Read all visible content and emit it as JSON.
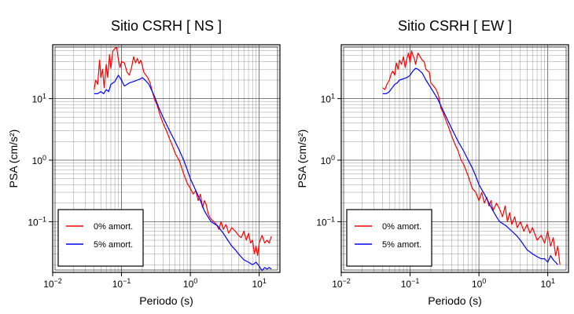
{
  "chart_data": [
    {
      "type": "line",
      "title": "Sitio CSRH [ NS ]",
      "xlabel": "Periodo (s)",
      "ylabel": "PSA (cm/s²)",
      "xscale": "log",
      "yscale": "log",
      "xlim": [
        0.01,
        20
      ],
      "ylim": [
        0.015,
        75
      ],
      "xticks": [
        0.01,
        0.1,
        1,
        10
      ],
      "yticks": [
        0.1,
        1,
        10
      ],
      "grid": true,
      "legend_position": "bottom-left",
      "series": [
        {
          "name": "0% amort.",
          "color": "#ff0000",
          "x": [
            0.04,
            0.042,
            0.045,
            0.048,
            0.05,
            0.053,
            0.056,
            0.06,
            0.063,
            0.067,
            0.07,
            0.075,
            0.08,
            0.085,
            0.09,
            0.095,
            0.1,
            0.11,
            0.12,
            0.13,
            0.14,
            0.15,
            0.16,
            0.17,
            0.18,
            0.19,
            0.2,
            0.21,
            0.22,
            0.24,
            0.26,
            0.28,
            0.3,
            0.33,
            0.36,
            0.4,
            0.45,
            0.5,
            0.55,
            0.6,
            0.7,
            0.8,
            0.9,
            1.0,
            1.1,
            1.2,
            1.3,
            1.4,
            1.5,
            1.6,
            1.7,
            1.8,
            1.9,
            2.0,
            2.2,
            2.4,
            2.6,
            2.8,
            3.0,
            3.3,
            3.6,
            4.0,
            4.5,
            5.0,
            5.5,
            6.0,
            6.5,
            7.0,
            7.5,
            8.0,
            8.5,
            9.0,
            9.5,
            10.0,
            11.0,
            12.0,
            13.0,
            14.0,
            15.0
          ],
          "values": [
            14,
            20,
            17,
            42,
            22,
            30,
            15,
            36,
            22,
            52,
            31,
            60,
            65,
            68,
            44,
            32,
            40,
            38,
            27,
            24,
            32,
            48,
            38,
            45,
            37,
            42,
            35,
            27,
            25,
            22,
            18,
            13,
            10,
            7.8,
            5.5,
            4.0,
            3.0,
            2.2,
            1.7,
            1.3,
            0.95,
            0.6,
            0.42,
            0.35,
            0.28,
            0.32,
            0.22,
            0.28,
            0.17,
            0.22,
            0.19,
            0.14,
            0.12,
            0.11,
            0.1,
            0.09,
            0.075,
            0.1,
            0.075,
            0.09,
            0.065,
            0.08,
            0.07,
            0.06,
            0.055,
            0.07,
            0.05,
            0.065,
            0.045,
            0.05,
            0.03,
            0.04,
            0.028,
            0.045,
            0.06,
            0.045,
            0.05,
            0.045,
            0.058
          ]
        },
        {
          "name": "5% amort.",
          "color": "#0000ff",
          "x": [
            0.04,
            0.045,
            0.05,
            0.055,
            0.06,
            0.065,
            0.07,
            0.075,
            0.08,
            0.09,
            0.1,
            0.11,
            0.12,
            0.13,
            0.15,
            0.17,
            0.19,
            0.2,
            0.22,
            0.25,
            0.3,
            0.35,
            0.4,
            0.5,
            0.6,
            0.7,
            0.8,
            0.9,
            1.0,
            1.2,
            1.4,
            1.6,
            1.8,
            2.0,
            2.5,
            3.0,
            3.5,
            4.0,
            4.5,
            5.0,
            6.0,
            7.0,
            8.0,
            9.0,
            10.0,
            11.0,
            12.0,
            13.0,
            14.0,
            15.0
          ],
          "values": [
            12,
            12,
            13,
            12,
            14,
            13,
            17,
            18,
            19,
            24,
            20,
            16,
            17,
            18,
            19,
            20,
            21,
            22,
            20,
            17,
            11,
            7,
            5,
            3,
            2,
            1.4,
            1.0,
            0.7,
            0.5,
            0.32,
            0.22,
            0.15,
            0.12,
            0.1,
            0.085,
            0.065,
            0.05,
            0.04,
            0.035,
            0.03,
            0.024,
            0.022,
            0.02,
            0.022,
            0.019,
            0.016,
            0.018,
            0.017,
            0.018,
            0.017
          ]
        }
      ]
    },
    {
      "type": "line",
      "title": "Sitio CSRH [ EW ]",
      "xlabel": "Periodo (s)",
      "ylabel": "PSA (cm/s²)",
      "xscale": "log",
      "yscale": "log",
      "xlim": [
        0.01,
        20
      ],
      "ylim": [
        0.015,
        75
      ],
      "xticks": [
        0.01,
        0.1,
        1,
        10
      ],
      "yticks": [
        0.1,
        1,
        10
      ],
      "grid": true,
      "legend_position": "bottom-left",
      "series": [
        {
          "name": "0% amort.",
          "color": "#ff0000",
          "x": [
            0.04,
            0.043,
            0.046,
            0.05,
            0.053,
            0.056,
            0.06,
            0.063,
            0.067,
            0.07,
            0.075,
            0.08,
            0.085,
            0.09,
            0.095,
            0.1,
            0.105,
            0.11,
            0.115,
            0.12,
            0.13,
            0.14,
            0.15,
            0.16,
            0.17,
            0.18,
            0.19,
            0.2,
            0.22,
            0.24,
            0.26,
            0.28,
            0.3,
            0.33,
            0.36,
            0.4,
            0.45,
            0.5,
            0.55,
            0.6,
            0.7,
            0.8,
            0.9,
            1.0,
            1.1,
            1.2,
            1.3,
            1.4,
            1.5,
            1.6,
            1.8,
            2.0,
            2.2,
            2.4,
            2.6,
            2.8,
            3.0,
            3.3,
            3.6,
            4.0,
            4.5,
            5.0,
            5.5,
            6.0,
            7.0,
            8.0,
            9.0,
            10.0,
            11.0,
            12.0,
            13.0,
            14.0,
            15.0
          ],
          "values": [
            15,
            14,
            17,
            20,
            25,
            28,
            24,
            38,
            30,
            42,
            36,
            48,
            32,
            45,
            55,
            38,
            60,
            50,
            45,
            36,
            55,
            48,
            42,
            40,
            30,
            28,
            27,
            18,
            16,
            14,
            11,
            7,
            6,
            4.5,
            3.5,
            2.5,
            1.8,
            1.4,
            1.0,
            0.85,
            0.55,
            0.35,
            0.3,
            0.22,
            0.3,
            0.2,
            0.25,
            0.18,
            0.22,
            0.15,
            0.2,
            0.16,
            0.12,
            0.18,
            0.1,
            0.14,
            0.09,
            0.12,
            0.08,
            0.1,
            0.07,
            0.09,
            0.065,
            0.08,
            0.05,
            0.06,
            0.045,
            0.07,
            0.04,
            0.055,
            0.028,
            0.04,
            0.02
          ]
        },
        {
          "name": "5% amort.",
          "color": "#0000ff",
          "x": [
            0.04,
            0.045,
            0.05,
            0.055,
            0.06,
            0.065,
            0.07,
            0.08,
            0.09,
            0.1,
            0.11,
            0.12,
            0.13,
            0.15,
            0.17,
            0.2,
            0.25,
            0.3,
            0.35,
            0.4,
            0.5,
            0.6,
            0.7,
            0.8,
            0.9,
            1.0,
            1.2,
            1.4,
            1.6,
            1.8,
            2.0,
            2.5,
            3.0,
            3.5,
            4.0,
            5.0,
            6.0,
            7.0,
            8.0,
            9.0,
            10.0,
            11.0,
            12.0,
            13.0,
            14.0
          ],
          "values": [
            12,
            12,
            13,
            15,
            17,
            18,
            20,
            21,
            22,
            24,
            28,
            31,
            30,
            26,
            20,
            15,
            10,
            6.5,
            4.5,
            3.3,
            2.0,
            1.4,
            1.0,
            0.75,
            0.55,
            0.4,
            0.28,
            0.2,
            0.15,
            0.12,
            0.1,
            0.085,
            0.07,
            0.06,
            0.05,
            0.035,
            0.03,
            0.027,
            0.025,
            0.025,
            0.022,
            0.028,
            0.024,
            0.022,
            0.02
          ]
        }
      ]
    }
  ]
}
